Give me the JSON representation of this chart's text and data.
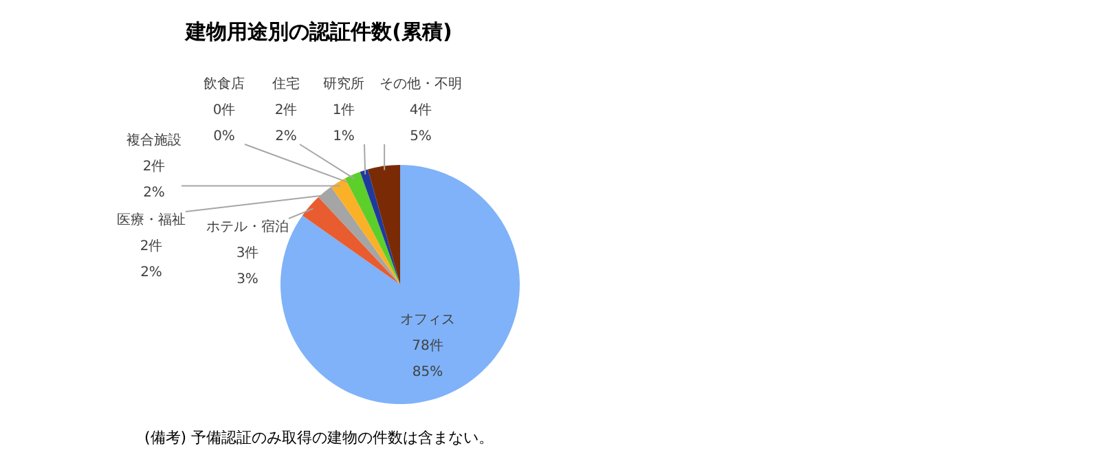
{
  "chart_data": {
    "type": "pie",
    "title": "建物用途別の認証件数(累積)",
    "categories": [
      "オフィス",
      "ホテル・宿泊",
      "医療・福祉",
      "複合施設",
      "飲食店",
      "住宅",
      "研究所",
      "その他・不明"
    ],
    "values": [
      78,
      3,
      2,
      2,
      0,
      2,
      1,
      4
    ],
    "value_labels": [
      "78件\n85%",
      "3件\n3%",
      "2件\n2%",
      "2件\n2%",
      "0件\n0%",
      "2件\n2%",
      "1件\n1%",
      "4件\n5%"
    ],
    "colors": [
      "#7fb2f8",
      "#e85c30",
      "#a5a5a5",
      "#fbb127",
      "#4472c4",
      "#5ccf2a",
      "#1f3a9e",
      "#7a2b05"
    ],
    "annotations": [
      "(備考) 予備認証のみ取得の建物の件数は含まない。"
    ]
  }
}
